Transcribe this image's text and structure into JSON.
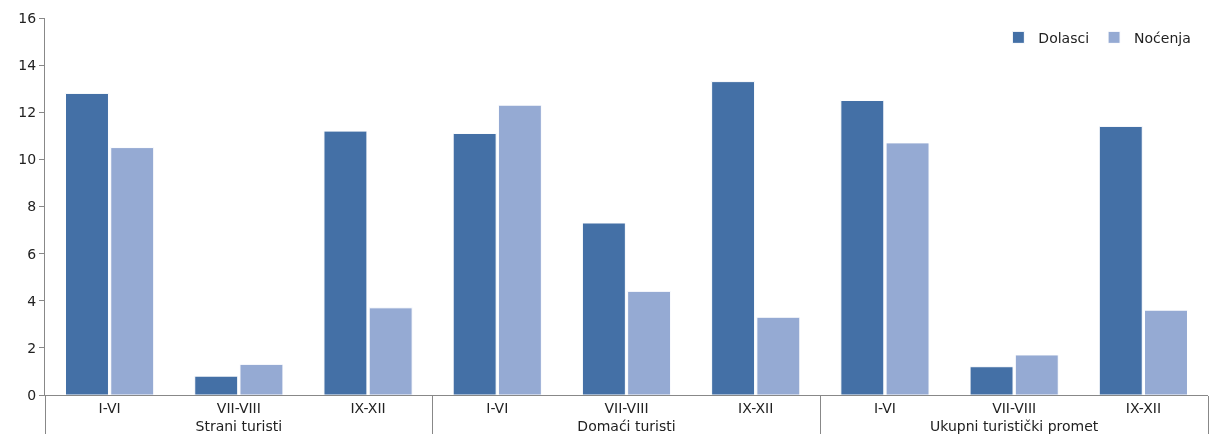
{
  "chart_data": {
    "type": "bar",
    "categories": [
      "I-VI",
      "VII-VIII",
      "IX-XII",
      "I-VI",
      "VII-VIII",
      "IX-XII",
      "I-VI",
      "VII-VIII",
      "IX-XII"
    ],
    "series": [
      {
        "name": "Dolasci",
        "color": "#4470a6",
        "values": [
          12.8,
          0.8,
          11.2,
          11.1,
          7.3,
          13.3,
          12.5,
          1.2,
          11.4
        ]
      },
      {
        "name": "Noćenja",
        "color": "#95aad3",
        "values": [
          10.5,
          1.3,
          3.7,
          12.3,
          4.4,
          3.3,
          10.7,
          1.7,
          3.6
        ]
      }
    ],
    "annotations": [
      "Strani turisti",
      "Domaći turisti",
      "Ukupni turistički promet"
    ],
    "ylim": [
      0,
      16
    ],
    "yticks": [
      0,
      2,
      4,
      6,
      8,
      10,
      12,
      14,
      16
    ],
    "grid": false,
    "legend": "top right"
  }
}
